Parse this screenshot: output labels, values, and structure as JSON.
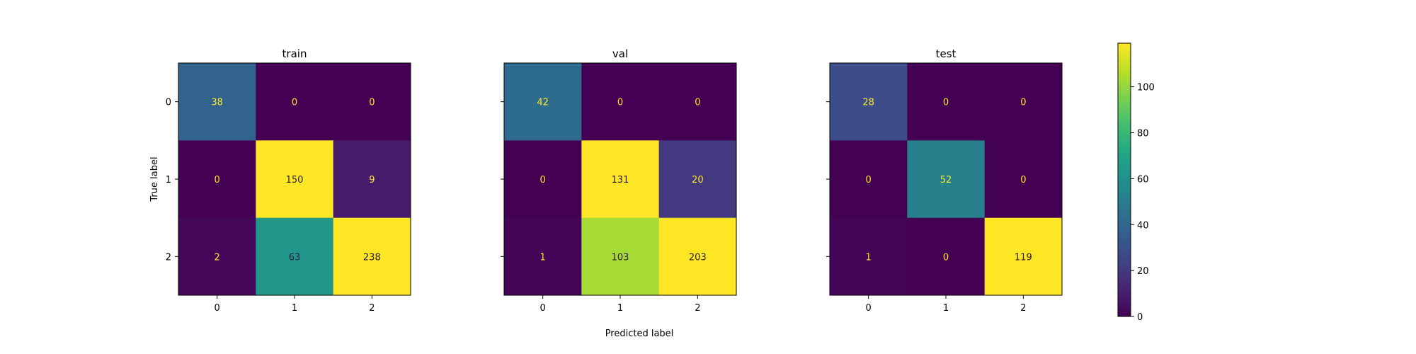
{
  "chart_data": {
    "type": "heatmap",
    "xlabel": "Predicted label",
    "ylabel": "True label",
    "x_tick_labels": [
      "0",
      "1",
      "2"
    ],
    "y_tick_labels": [
      "0",
      "1",
      "2"
    ],
    "colormap": "viridis",
    "color_range": [
      0,
      119
    ],
    "colorbar_ticks": [
      0,
      20,
      40,
      60,
      80,
      100
    ],
    "panels": [
      {
        "title": "train",
        "matrix": [
          [
            38,
            0,
            0
          ],
          [
            0,
            150,
            9
          ],
          [
            2,
            63,
            238
          ]
        ]
      },
      {
        "title": "val",
        "matrix": [
          [
            42,
            0,
            0
          ],
          [
            0,
            131,
            20
          ],
          [
            1,
            103,
            203
          ]
        ]
      },
      {
        "title": "test",
        "matrix": [
          [
            28,
            0,
            0
          ],
          [
            0,
            52,
            0
          ],
          [
            1,
            0,
            119
          ]
        ]
      }
    ]
  }
}
